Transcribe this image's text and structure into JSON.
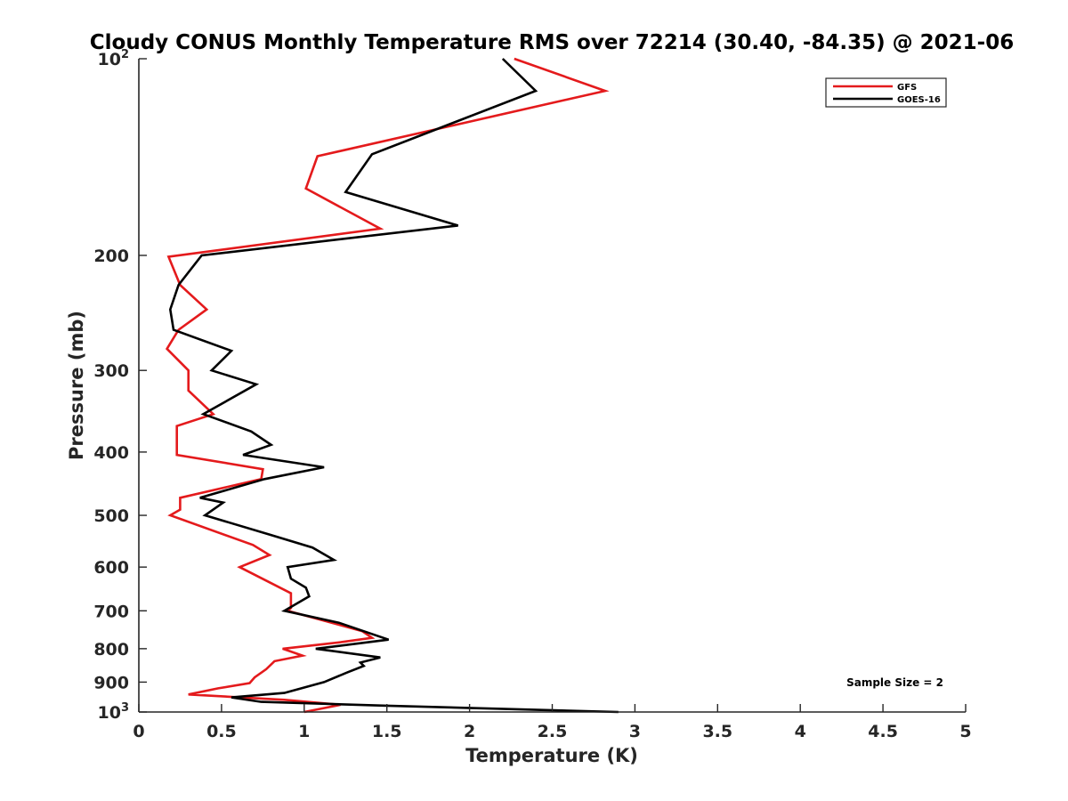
{
  "chart_data": {
    "type": "line",
    "title": "Cloudy CONUS Monthly Temperature RMS over 72214 (30.40, -84.35) @ 2021-06",
    "xlabel": "Temperature (K)",
    "ylabel": "Pressure (mb)",
    "xlim": [
      0,
      5
    ],
    "ylim": [
      100,
      1000
    ],
    "y_scale": "log",
    "y_reversed": true,
    "x_ticks": [
      {
        "value": 0,
        "label": "0"
      },
      {
        "value": 0.5,
        "label": "0.5"
      },
      {
        "value": 1,
        "label": "1"
      },
      {
        "value": 1.5,
        "label": "1.5"
      },
      {
        "value": 2,
        "label": "2"
      },
      {
        "value": 2.5,
        "label": "2.5"
      },
      {
        "value": 3,
        "label": "3"
      },
      {
        "value": 3.5,
        "label": "3.5"
      },
      {
        "value": 4,
        "label": "4"
      },
      {
        "value": 4.5,
        "label": "4.5"
      },
      {
        "value": 5,
        "label": "5"
      }
    ],
    "y_ticks": [
      {
        "value": 100,
        "base": "10",
        "exp": "2"
      },
      {
        "value": 200,
        "label": "200"
      },
      {
        "value": 300,
        "label": "300"
      },
      {
        "value": 400,
        "label": "400"
      },
      {
        "value": 500,
        "label": "500"
      },
      {
        "value": 600,
        "label": "600"
      },
      {
        "value": 700,
        "label": "700"
      },
      {
        "value": 800,
        "label": "800"
      },
      {
        "value": 900,
        "label": "900"
      },
      {
        "value": 1000,
        "base": "10",
        "exp": "3"
      }
    ],
    "legend_position": "top-right",
    "grid": false,
    "annotation": "Sample Size = 2",
    "series": [
      {
        "name": "GFS",
        "color": "#e41a1c",
        "points": [
          [
            2.27,
            100
          ],
          [
            2.82,
            112
          ],
          [
            1.08,
            141
          ],
          [
            1.01,
            158
          ],
          [
            1.46,
            182
          ],
          [
            0.18,
            201
          ],
          [
            0.25,
            222
          ],
          [
            0.41,
            242
          ],
          [
            0.24,
            260
          ],
          [
            0.17,
            278
          ],
          [
            0.3,
            300
          ],
          [
            0.3,
            322
          ],
          [
            0.45,
            350
          ],
          [
            0.23,
            365
          ],
          [
            0.23,
            404
          ],
          [
            0.75,
            425
          ],
          [
            0.74,
            440
          ],
          [
            0.25,
            470
          ],
          [
            0.25,
            490
          ],
          [
            0.19,
            500
          ],
          [
            0.69,
            555
          ],
          [
            0.79,
            575
          ],
          [
            0.61,
            600
          ],
          [
            0.92,
            658
          ],
          [
            0.92,
            693
          ],
          [
            0.9,
            700
          ],
          [
            1.35,
            752
          ],
          [
            1.41,
            770
          ],
          [
            1.22,
            782
          ],
          [
            0.87,
            800
          ],
          [
            0.99,
            820
          ],
          [
            0.82,
            836
          ],
          [
            0.77,
            860
          ],
          [
            0.7,
            885
          ],
          [
            0.67,
            903
          ],
          [
            0.48,
            920
          ],
          [
            0.3,
            940
          ],
          [
            0.88,
            958
          ],
          [
            1.22,
            975
          ],
          [
            1.0,
            1000
          ]
        ]
      },
      {
        "name": "GOES-16",
        "color": "#000000",
        "points": [
          [
            2.2,
            100
          ],
          [
            2.4,
            112
          ],
          [
            1.41,
            140
          ],
          [
            1.25,
            160
          ],
          [
            1.93,
            180
          ],
          [
            0.38,
            200
          ],
          [
            0.24,
            222
          ],
          [
            0.19,
            242
          ],
          [
            0.21,
            260
          ],
          [
            0.56,
            280
          ],
          [
            0.44,
            300
          ],
          [
            0.71,
            315
          ],
          [
            0.39,
            350
          ],
          [
            0.68,
            372
          ],
          [
            0.8,
            390
          ],
          [
            0.63,
            404
          ],
          [
            1.12,
            422
          ],
          [
            0.76,
            440
          ],
          [
            0.37,
            470
          ],
          [
            0.51,
            478
          ],
          [
            0.4,
            500
          ],
          [
            0.79,
            535
          ],
          [
            1.05,
            560
          ],
          [
            1.18,
            585
          ],
          [
            0.9,
            600
          ],
          [
            0.92,
            625
          ],
          [
            1.01,
            645
          ],
          [
            1.03,
            665
          ],
          [
            0.88,
            700
          ],
          [
            1.21,
            730
          ],
          [
            1.51,
            775
          ],
          [
            1.07,
            800
          ],
          [
            1.46,
            825
          ],
          [
            1.34,
            840
          ],
          [
            1.36,
            850
          ],
          [
            1.26,
            870
          ],
          [
            1.12,
            900
          ],
          [
            0.88,
            935
          ],
          [
            0.56,
            950
          ],
          [
            0.74,
            965
          ],
          [
            1.5,
            978
          ],
          [
            2.9,
            1000
          ]
        ]
      }
    ]
  }
}
